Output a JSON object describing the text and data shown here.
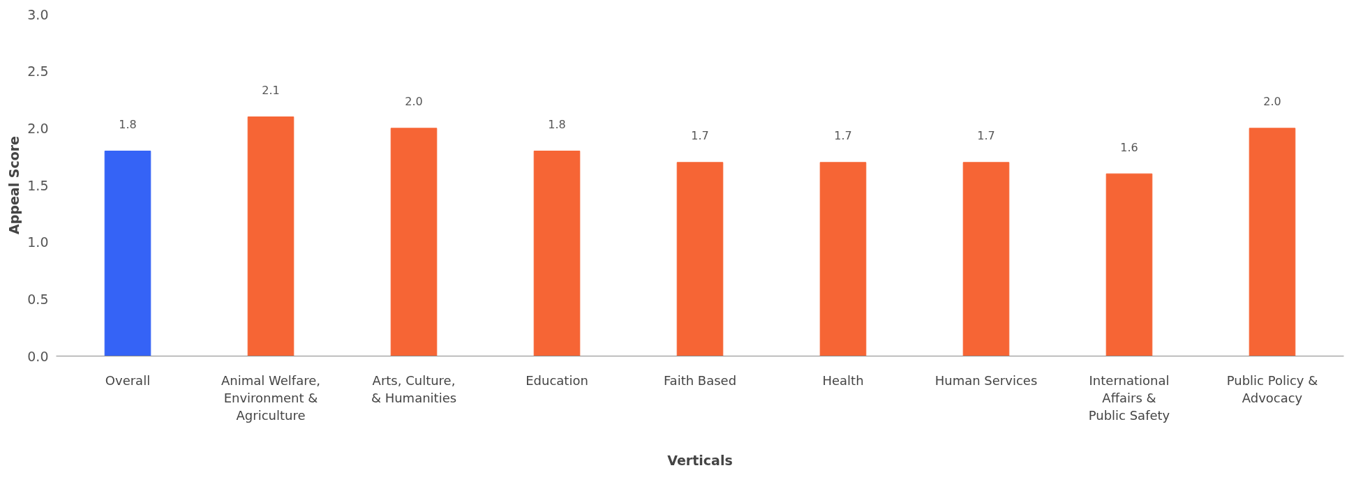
{
  "chart_data": {
    "type": "bar",
    "xlabel": "Verticals",
    "ylabel": "Appeal Score",
    "categories": [
      "Overall",
      "Animal Welfare, Environment & Agriculture",
      "Arts, Culture, & Humanities",
      "Education",
      "Faith Based",
      "Health",
      "Human Services",
      "International Affairs & Public Safety",
      "Public Policy & Advocacy"
    ],
    "values": [
      1.8,
      2.1,
      2.0,
      1.8,
      1.7,
      1.7,
      1.7,
      1.6,
      2.0
    ],
    "colors": [
      "#3563f6",
      "#f66535",
      "#f66535",
      "#f66535",
      "#f66535",
      "#f66535",
      "#f66535",
      "#f66535",
      "#f66535"
    ],
    "ylim": [
      0,
      3
    ],
    "yticks": [
      {
        "value": 0,
        "label": "0.0"
      },
      {
        "value": 0.5,
        "label": "0.5"
      },
      {
        "value": 1,
        "label": "1.0"
      },
      {
        "value": 1.5,
        "label": "1.5"
      },
      {
        "value": 2,
        "label": "2.0"
      },
      {
        "value": 2.5,
        "label": "2.5"
      },
      {
        "value": 3,
        "label": "3.0"
      }
    ],
    "value_labels": [
      "1.8",
      "2.1",
      "2.0",
      "1.8",
      "1.7",
      "1.7",
      "1.7",
      "1.6",
      "2.0"
    ],
    "grid": false
  }
}
